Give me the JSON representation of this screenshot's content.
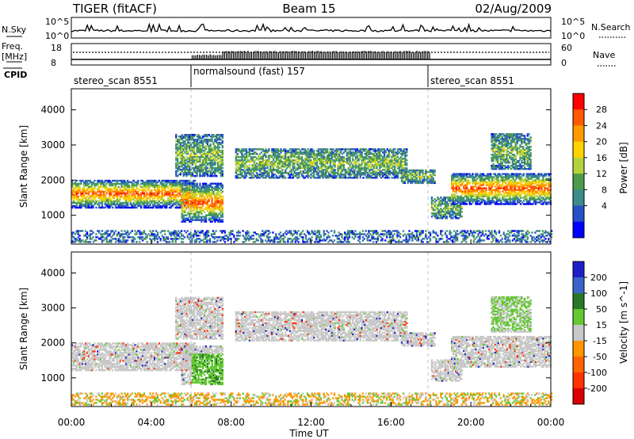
{
  "header": {
    "title": "TIGER (fitACF)",
    "beam": "Beam 15",
    "date": "02/Aug/2009"
  },
  "strip": {
    "nsky_label": "N.Sky",
    "nsky_ticks": [
      "10^5",
      "10^0"
    ],
    "nsearch_label": "N.Search",
    "freq_label": "Freq.",
    "freq_unit": "[MHz]",
    "freq_ticks": [
      "18",
      "8"
    ],
    "nave_label": "Nave",
    "nave_ticks": [
      "60",
      "0"
    ],
    "cpid_label": "CPID",
    "cpid_segments": [
      {
        "label": "stereo_scan 8551",
        "start_hour": 0,
        "end_hour": 6
      },
      {
        "label": "normalsound (fast) 157",
        "start_hour": 6,
        "end_hour": 18
      },
      {
        "label": "stereo_scan 8551",
        "start_hour": 18,
        "end_hour": 24
      }
    ]
  },
  "chart_data": [
    {
      "type": "heatmap",
      "name": "power",
      "ylabel": "Slant Range [km]",
      "ylim": [
        180,
        4600
      ],
      "yticks": [
        1000,
        2000,
        3000,
        4000
      ],
      "xlabel": "",
      "xlim": [
        0,
        24
      ],
      "colorbar": {
        "label": "Power [dB]",
        "ticks": [
          "28",
          "24",
          "20",
          "16",
          "12",
          "8",
          "4"
        ],
        "colors": [
          "#ff0000",
          "#ff5a00",
          "#ff9b00",
          "#ffd200",
          "#b4d23c",
          "#4b9b4b",
          "#3c8c8c",
          "#2850c8",
          "#0000ff"
        ]
      }
    },
    {
      "type": "heatmap",
      "name": "velocity",
      "ylabel": "Slant Range [km]",
      "ylim": [
        180,
        4600
      ],
      "yticks": [
        1000,
        2000,
        3000,
        4000
      ],
      "xlabel": "Time UT",
      "xlim": [
        0,
        24
      ],
      "xticks": [
        "00:00",
        "04:00",
        "08:00",
        "12:00",
        "16:00",
        "20:00",
        "00:00"
      ],
      "colorbar": {
        "label": "Velocity [m s^-1]",
        "ticks": [
          "200",
          "100",
          "50",
          "15",
          "-15",
          "-50",
          "-100",
          "-200"
        ],
        "colors": [
          "#1e1ec8",
          "#3c64c8",
          "#287828",
          "#64c832",
          "#c8c8c8",
          "#ff9600",
          "#ff6400",
          "#ff3200",
          "#dc0000"
        ]
      }
    }
  ]
}
